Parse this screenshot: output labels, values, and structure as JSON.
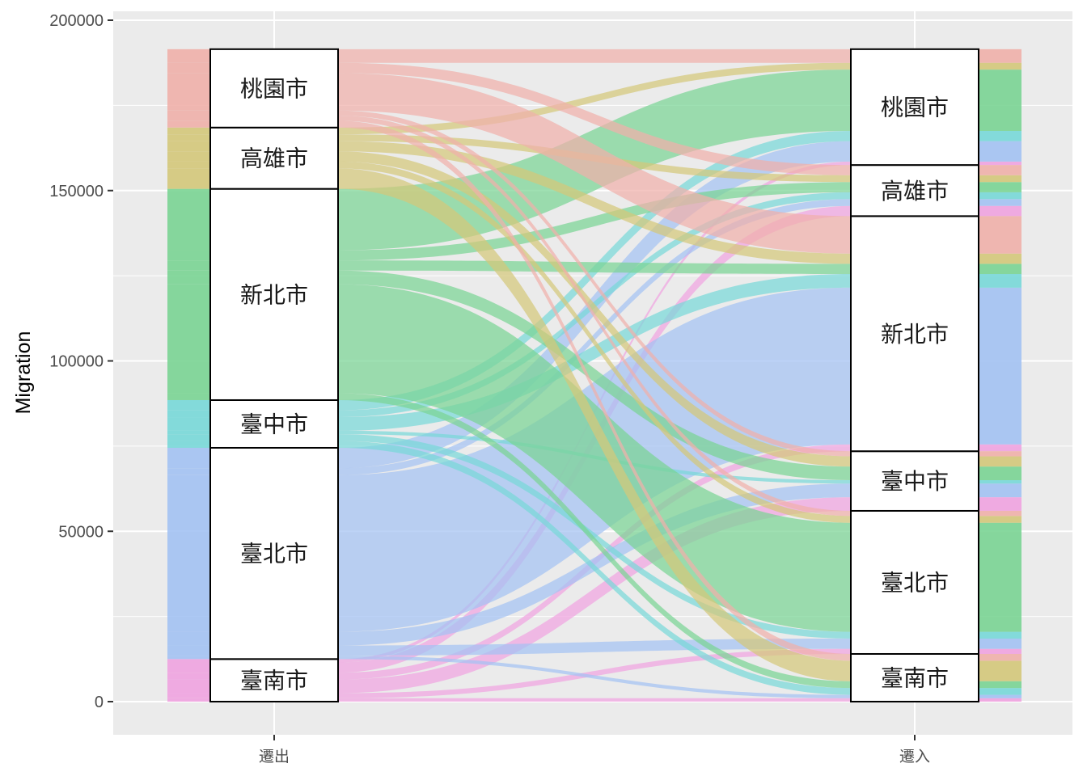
{
  "chart_data": {
    "type": "alluvial",
    "title": "",
    "xlabel": "",
    "ylabel": "Migration",
    "ylim": [
      -10000,
      202000
    ],
    "yticks": [
      0,
      50000,
      100000,
      150000,
      200000
    ],
    "ytick_labels": [
      "0",
      "50000",
      "100000",
      "150000",
      "200000"
    ],
    "axes": [
      "遷出",
      "遷入"
    ],
    "grid": true,
    "legend": "none",
    "colors": {
      "臺南市": "#f0a3e0",
      "臺北市": "#a3c2f3",
      "臺中市": "#78d8d8",
      "新北市": "#7ad494",
      "高雄市": "#d4c87a",
      "桃園市": "#f0b0aa",
      "panel_bg": "#ebebeb",
      "grid": "#ffffff"
    },
    "strata_order": [
      "臺南市",
      "臺北市",
      "臺中市",
      "新北市",
      "高雄市",
      "桃園市"
    ],
    "flows": [
      {
        "from": "臺南市",
        "to": "臺南市",
        "value": 1000
      },
      {
        "from": "臺南市",
        "to": "臺北市",
        "value": 1500
      },
      {
        "from": "臺南市",
        "to": "臺中市",
        "value": 4000
      },
      {
        "from": "臺南市",
        "to": "新北市",
        "value": 2000
      },
      {
        "from": "臺南市",
        "to": "高雄市",
        "value": 3000
      },
      {
        "from": "臺南市",
        "to": "桃園市",
        "value": 1000
      },
      {
        "from": "臺北市",
        "to": "臺南市",
        "value": 1000
      },
      {
        "from": "臺北市",
        "to": "臺北市",
        "value": 3000
      },
      {
        "from": "臺北市",
        "to": "臺中市",
        "value": 4000
      },
      {
        "from": "臺北市",
        "to": "新北市",
        "value": 46000
      },
      {
        "from": "臺北市",
        "to": "高雄市",
        "value": 2000
      },
      {
        "from": "臺北市",
        "to": "桃園市",
        "value": 6000
      },
      {
        "from": "臺中市",
        "to": "臺南市",
        "value": 2000
      },
      {
        "from": "臺中市",
        "to": "臺北市",
        "value": 2000
      },
      {
        "from": "臺中市",
        "to": "臺中市",
        "value": 1000
      },
      {
        "from": "臺中市",
        "to": "新北市",
        "value": 4000
      },
      {
        "from": "臺中市",
        "to": "高雄市",
        "value": 2000
      },
      {
        "from": "臺中市",
        "to": "桃園市",
        "value": 3000
      },
      {
        "from": "新北市",
        "to": "臺南市",
        "value": 2000
      },
      {
        "from": "新北市",
        "to": "臺北市",
        "value": 32000
      },
      {
        "from": "新北市",
        "to": "臺中市",
        "value": 4000
      },
      {
        "from": "新北市",
        "to": "新北市",
        "value": 3000
      },
      {
        "from": "新北市",
        "to": "高雄市",
        "value": 3000
      },
      {
        "from": "新北市",
        "to": "桃園市",
        "value": 18000
      },
      {
        "from": "高雄市",
        "to": "臺南市",
        "value": 6000
      },
      {
        "from": "高雄市",
        "to": "臺北市",
        "value": 2000
      },
      {
        "from": "高雄市",
        "to": "臺中市",
        "value": 3000
      },
      {
        "from": "高雄市",
        "to": "新北市",
        "value": 3000
      },
      {
        "from": "高雄市",
        "to": "高雄市",
        "value": 2000
      },
      {
        "from": "高雄市",
        "to": "桃園市",
        "value": 2000
      },
      {
        "from": "桃園市",
        "to": "臺南市",
        "value": 2000
      },
      {
        "from": "桃園市",
        "to": "臺北市",
        "value": 1500
      },
      {
        "from": "桃園市",
        "to": "臺中市",
        "value": 1500
      },
      {
        "from": "桃園市",
        "to": "新北市",
        "value": 11000
      },
      {
        "from": "桃園市",
        "to": "高雄市",
        "value": 3000
      },
      {
        "from": "桃園市",
        "to": "桃園市",
        "value": 4000
      }
    ]
  }
}
